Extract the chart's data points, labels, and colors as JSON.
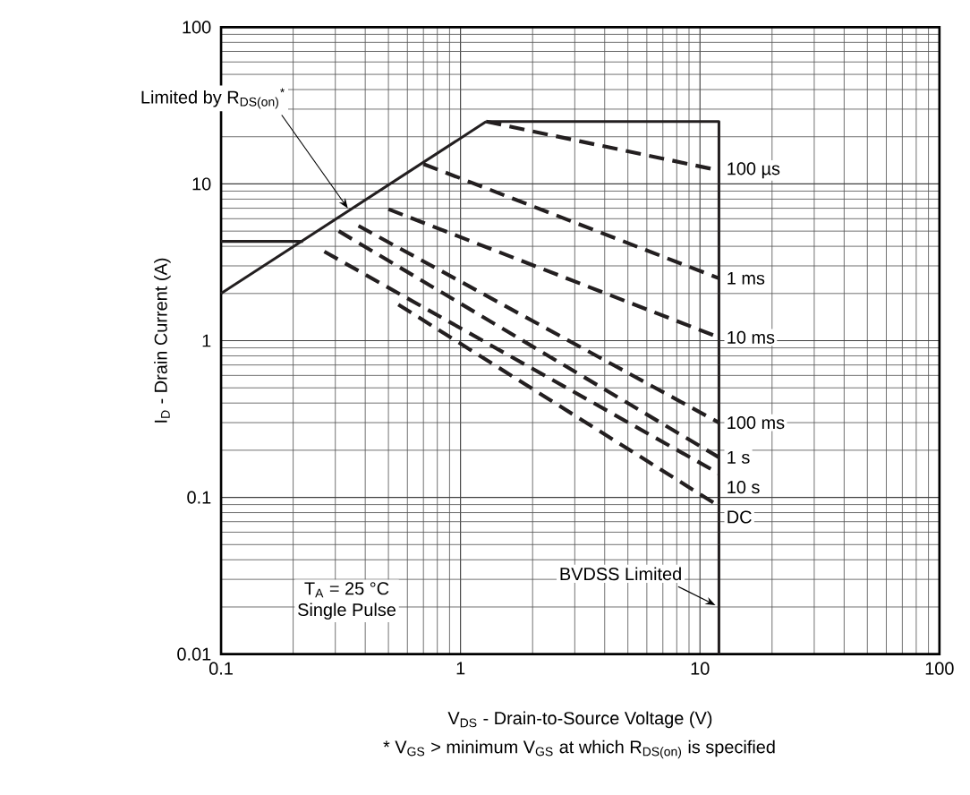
{
  "chart_data": {
    "type": "line",
    "xlabel": "V$_{DS}$ - Drain-to-Source Voltage (V)",
    "ylabel": "I$_{D}$ - Drain Current (A)",
    "log": "xy",
    "grid": true,
    "xlim": [
      0.1,
      100
    ],
    "ylim": [
      0.01,
      100
    ],
    "xticks": [
      0.1,
      1,
      10,
      100
    ],
    "yticks": [
      0.01,
      0.1,
      1,
      10,
      100
    ],
    "series": [
      {
        "color": "#231f20",
        "line_style": "solid",
        "x": [
          0.1,
          0.22
        ],
        "values": [
          4.3,
          4.3
        ]
      },
      {
        "color": "#231f20",
        "line_style": "solid",
        "x": [
          0.1,
          1.28
        ],
        "values": [
          2,
          25
        ]
      },
      {
        "color": "#231f20",
        "line_style": "solid",
        "x": [
          1.28,
          12,
          12
        ],
        "values": [
          25,
          25,
          0.01
        ]
      },
      {
        "name": "100 µs",
        "color": "#231f20",
        "line_style": "dashed",
        "x": [
          1.28,
          12
        ],
        "values": [
          25,
          12.2
        ]
      },
      {
        "name": "1 ms",
        "color": "#231f20",
        "line_style": "dashed",
        "x": [
          0.7,
          12
        ],
        "values": [
          13.4,
          2.5
        ]
      },
      {
        "name": "10 ms",
        "color": "#231f20",
        "line_style": "dashed",
        "x": [
          0.5,
          12
        ],
        "values": [
          6.9,
          1.05
        ]
      },
      {
        "name": "100 ms",
        "color": "#231f20",
        "line_style": "dashed",
        "x": [
          0.375,
          12
        ],
        "values": [
          5.4,
          0.3
        ]
      },
      {
        "name": "1 s",
        "color": "#231f20",
        "line_style": "dashed",
        "x": [
          0.31,
          12
        ],
        "values": [
          5,
          0.18
        ]
      },
      {
        "name": "10 s",
        "color": "#231f20",
        "line_style": "dashed",
        "x": [
          0.27,
          12
        ],
        "values": [
          3.7,
          0.142
        ]
      },
      {
        "name": "DC",
        "color": "#231f20",
        "line_style": "dashed",
        "x": [
          0.55,
          12
        ],
        "values": [
          1.7,
          0.088
        ]
      }
    ],
    "annotations": [
      {
        "text": "Limited by R$_{DS(on)}$$^{*}$",
        "x": 0.35,
        "y": 6.8
      },
      "T$_{A}$ = 25 °C",
      "Single Pulse",
      {
        "text": "BVDSS Limited",
        "x": 12,
        "y": 0.02
      },
      "* V$_{GS}$ > minimum V$_{GS}$ at which R$_{DS(on)}$ is specified"
    ]
  }
}
